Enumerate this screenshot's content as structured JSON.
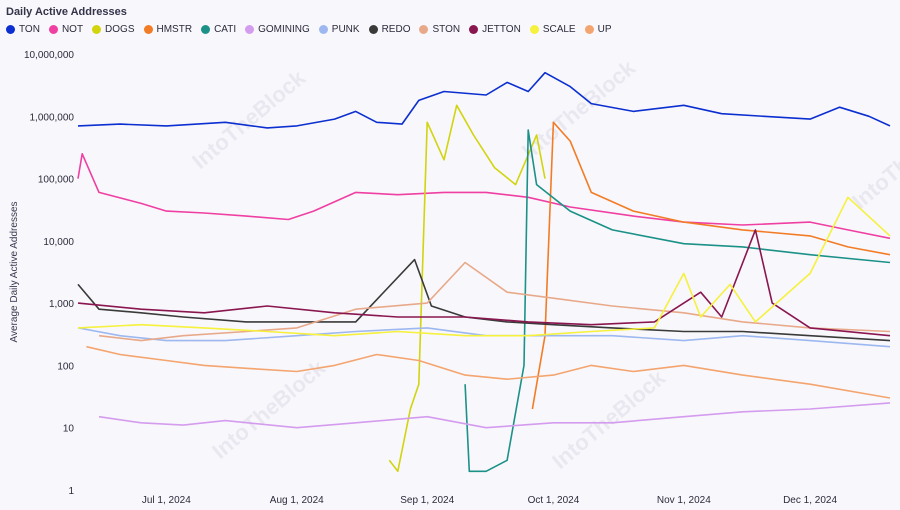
{
  "chart_data": {
    "type": "line",
    "title": "Daily Active Addresses",
    "ylabel": "Average Daily Active Addresses",
    "xlabel": "",
    "yscale": "log",
    "ylim": [
      1,
      10000000
    ],
    "yticks": [
      1,
      10,
      100,
      1000,
      10000,
      100000,
      1000000,
      10000000
    ],
    "ytick_labels": [
      "1",
      "10",
      "100",
      "1,000",
      "10,000",
      "100,000",
      "1,000,000",
      "10,000,000"
    ],
    "x_start": "2024-06-10",
    "x_end": "2024-12-20",
    "xticks": [
      "2024-07-01",
      "2024-08-01",
      "2024-09-01",
      "2024-10-01",
      "2024-11-01",
      "2024-12-01"
    ],
    "xtick_labels": [
      "Jul 1, 2024",
      "Aug 1, 2024",
      "Sep 1, 2024",
      "Oct 1, 2024",
      "Nov 1, 2024",
      "Dec 1, 2024"
    ],
    "watermark": "IntoTheBlock",
    "legend_position": "top-left",
    "series": [
      {
        "name": "TON",
        "color": "#0b2fd0",
        "points": [
          [
            "2024-06-10",
            700000
          ],
          [
            "2024-06-20",
            750000
          ],
          [
            "2024-07-01",
            700000
          ],
          [
            "2024-07-15",
            800000
          ],
          [
            "2024-07-25",
            650000
          ],
          [
            "2024-08-01",
            700000
          ],
          [
            "2024-08-10",
            900000
          ],
          [
            "2024-08-15",
            1200000
          ],
          [
            "2024-08-20",
            800000
          ],
          [
            "2024-08-26",
            750000
          ],
          [
            "2024-08-30",
            1800000
          ],
          [
            "2024-09-05",
            2500000
          ],
          [
            "2024-09-15",
            2200000
          ],
          [
            "2024-09-20",
            3500000
          ],
          [
            "2024-09-25",
            2500000
          ],
          [
            "2024-09-29",
            5000000
          ],
          [
            "2024-10-05",
            3000000
          ],
          [
            "2024-10-10",
            1600000
          ],
          [
            "2024-10-20",
            1200000
          ],
          [
            "2024-11-01",
            1500000
          ],
          [
            "2024-11-10",
            1100000
          ],
          [
            "2024-11-20",
            1000000
          ],
          [
            "2024-12-01",
            900000
          ],
          [
            "2024-12-08",
            1400000
          ],
          [
            "2024-12-15",
            1000000
          ],
          [
            "2024-12-20",
            700000
          ]
        ]
      },
      {
        "name": "NOT",
        "color": "#ef3fa2",
        "points": [
          [
            "2024-06-10",
            100000
          ],
          [
            "2024-06-11",
            250000
          ],
          [
            "2024-06-15",
            60000
          ],
          [
            "2024-06-25",
            40000
          ],
          [
            "2024-07-01",
            30000
          ],
          [
            "2024-07-10",
            28000
          ],
          [
            "2024-07-20",
            25000
          ],
          [
            "2024-07-30",
            22000
          ],
          [
            "2024-08-05",
            30000
          ],
          [
            "2024-08-15",
            60000
          ],
          [
            "2024-08-25",
            55000
          ],
          [
            "2024-09-05",
            60000
          ],
          [
            "2024-09-15",
            60000
          ],
          [
            "2024-09-25",
            50000
          ],
          [
            "2024-10-05",
            35000
          ],
          [
            "2024-10-20",
            25000
          ],
          [
            "2024-11-01",
            20000
          ],
          [
            "2024-11-15",
            18000
          ],
          [
            "2024-12-01",
            20000
          ],
          [
            "2024-12-10",
            15000
          ],
          [
            "2024-12-20",
            11000
          ]
        ]
      },
      {
        "name": "DOGS",
        "color": "#d2d40e",
        "points": [
          [
            "2024-08-23",
            3
          ],
          [
            "2024-08-25",
            2
          ],
          [
            "2024-08-28",
            20
          ],
          [
            "2024-08-30",
            50
          ],
          [
            "2024-09-01",
            800000
          ],
          [
            "2024-09-05",
            200000
          ],
          [
            "2024-09-08",
            1500000
          ],
          [
            "2024-09-12",
            500000
          ],
          [
            "2024-09-17",
            150000
          ],
          [
            "2024-09-22",
            80000
          ],
          [
            "2024-09-27",
            500000
          ],
          [
            "2024-09-29",
            100000
          ]
        ]
      },
      {
        "name": "HMSTR",
        "color": "#f27c26",
        "points": [
          [
            "2024-09-26",
            20
          ],
          [
            "2024-09-29",
            300
          ],
          [
            "2024-10-01",
            800000
          ],
          [
            "2024-10-05",
            400000
          ],
          [
            "2024-10-10",
            60000
          ],
          [
            "2024-10-20",
            30000
          ],
          [
            "2024-11-01",
            20000
          ],
          [
            "2024-11-15",
            15000
          ],
          [
            "2024-12-01",
            12000
          ],
          [
            "2024-12-10",
            8000
          ],
          [
            "2024-12-20",
            6000
          ]
        ]
      },
      {
        "name": "CATI",
        "color": "#1c9188",
        "points": [
          [
            "2024-09-10",
            50
          ],
          [
            "2024-09-11",
            2
          ],
          [
            "2024-09-15",
            2
          ],
          [
            "2024-09-20",
            3
          ],
          [
            "2024-09-24",
            100
          ],
          [
            "2024-09-25",
            600000
          ],
          [
            "2024-09-27",
            80000
          ],
          [
            "2024-10-05",
            30000
          ],
          [
            "2024-10-15",
            15000
          ],
          [
            "2024-11-01",
            9000
          ],
          [
            "2024-11-15",
            8000
          ],
          [
            "2024-12-01",
            6000
          ],
          [
            "2024-12-20",
            4500
          ]
        ]
      },
      {
        "name": "GOMINING",
        "color": "#d49cee",
        "points": [
          [
            "2024-06-15",
            15
          ],
          [
            "2024-06-25",
            12
          ],
          [
            "2024-07-05",
            11
          ],
          [
            "2024-07-15",
            13
          ],
          [
            "2024-08-01",
            10
          ],
          [
            "2024-08-15",
            12
          ],
          [
            "2024-09-01",
            15
          ],
          [
            "2024-09-15",
            10
          ],
          [
            "2024-10-01",
            12
          ],
          [
            "2024-10-15",
            12
          ],
          [
            "2024-11-01",
            15
          ],
          [
            "2024-11-15",
            18
          ],
          [
            "2024-12-01",
            20
          ],
          [
            "2024-12-20",
            25
          ]
        ]
      },
      {
        "name": "PUNK",
        "color": "#9db8f0",
        "points": [
          [
            "2024-06-10",
            400
          ],
          [
            "2024-06-20",
            300
          ],
          [
            "2024-07-01",
            250
          ],
          [
            "2024-07-15",
            250
          ],
          [
            "2024-08-01",
            300
          ],
          [
            "2024-08-15",
            350
          ],
          [
            "2024-09-01",
            400
          ],
          [
            "2024-09-15",
            300
          ],
          [
            "2024-10-01",
            300
          ],
          [
            "2024-10-15",
            300
          ],
          [
            "2024-11-01",
            250
          ],
          [
            "2024-11-15",
            300
          ],
          [
            "2024-12-01",
            250
          ],
          [
            "2024-12-20",
            200
          ]
        ]
      },
      {
        "name": "REDO",
        "color": "#3a3a3a",
        "points": [
          [
            "2024-06-10",
            2000
          ],
          [
            "2024-06-15",
            800
          ],
          [
            "2024-06-25",
            700
          ],
          [
            "2024-07-05",
            600
          ],
          [
            "2024-07-20",
            500
          ],
          [
            "2024-08-01",
            500
          ],
          [
            "2024-08-15",
            500
          ],
          [
            "2024-08-29",
            5000
          ],
          [
            "2024-09-02",
            900
          ],
          [
            "2024-09-10",
            600
          ],
          [
            "2024-09-20",
            500
          ],
          [
            "2024-10-01",
            450
          ],
          [
            "2024-10-15",
            400
          ],
          [
            "2024-11-01",
            350
          ],
          [
            "2024-11-15",
            350
          ],
          [
            "2024-12-01",
            300
          ],
          [
            "2024-12-20",
            250
          ]
        ]
      },
      {
        "name": "STON",
        "color": "#e8a98a",
        "points": [
          [
            "2024-06-15",
            300
          ],
          [
            "2024-06-25",
            250
          ],
          [
            "2024-07-05",
            300
          ],
          [
            "2024-07-20",
            350
          ],
          [
            "2024-08-01",
            400
          ],
          [
            "2024-08-15",
            800
          ],
          [
            "2024-09-01",
            1000
          ],
          [
            "2024-09-10",
            4500
          ],
          [
            "2024-09-20",
            1500
          ],
          [
            "2024-10-01",
            1200
          ],
          [
            "2024-10-15",
            900
          ],
          [
            "2024-11-01",
            700
          ],
          [
            "2024-11-15",
            500
          ],
          [
            "2024-12-01",
            400
          ],
          [
            "2024-12-20",
            350
          ]
        ]
      },
      {
        "name": "JETTON",
        "color": "#8a1650",
        "points": [
          [
            "2024-06-10",
            1000
          ],
          [
            "2024-06-25",
            800
          ],
          [
            "2024-07-10",
            700
          ],
          [
            "2024-07-25",
            900
          ],
          [
            "2024-08-10",
            700
          ],
          [
            "2024-08-25",
            600
          ],
          [
            "2024-09-10",
            600
          ],
          [
            "2024-09-25",
            500
          ],
          [
            "2024-10-10",
            450
          ],
          [
            "2024-10-25",
            500
          ],
          [
            "2024-11-05",
            1500
          ],
          [
            "2024-11-10",
            600
          ],
          [
            "2024-11-18",
            15000
          ],
          [
            "2024-11-22",
            1000
          ],
          [
            "2024-12-01",
            400
          ],
          [
            "2024-12-20",
            300
          ]
        ]
      },
      {
        "name": "SCALE",
        "color": "#f5f13c",
        "points": [
          [
            "2024-06-10",
            400
          ],
          [
            "2024-06-25",
            450
          ],
          [
            "2024-07-10",
            400
          ],
          [
            "2024-07-25",
            350
          ],
          [
            "2024-08-10",
            300
          ],
          [
            "2024-08-25",
            350
          ],
          [
            "2024-09-10",
            300
          ],
          [
            "2024-09-25",
            300
          ],
          [
            "2024-10-10",
            350
          ],
          [
            "2024-10-25",
            400
          ],
          [
            "2024-11-01",
            3000
          ],
          [
            "2024-11-05",
            600
          ],
          [
            "2024-11-12",
            2000
          ],
          [
            "2024-11-18",
            500
          ],
          [
            "2024-12-01",
            3000
          ],
          [
            "2024-12-10",
            50000
          ],
          [
            "2024-12-20",
            12000
          ]
        ]
      },
      {
        "name": "UP",
        "color": "#f4a46e",
        "points": [
          [
            "2024-06-12",
            200
          ],
          [
            "2024-06-20",
            150
          ],
          [
            "2024-07-01",
            120
          ],
          [
            "2024-07-10",
            100
          ],
          [
            "2024-07-20",
            90
          ],
          [
            "2024-08-01",
            80
          ],
          [
            "2024-08-10",
            100
          ],
          [
            "2024-08-20",
            150
          ],
          [
            "2024-08-30",
            120
          ],
          [
            "2024-09-10",
            70
          ],
          [
            "2024-09-20",
            60
          ],
          [
            "2024-10-01",
            70
          ],
          [
            "2024-10-10",
            100
          ],
          [
            "2024-10-20",
            80
          ],
          [
            "2024-11-01",
            100
          ],
          [
            "2024-11-15",
            70
          ],
          [
            "2024-12-01",
            50
          ],
          [
            "2024-12-20",
            30
          ]
        ]
      }
    ]
  }
}
